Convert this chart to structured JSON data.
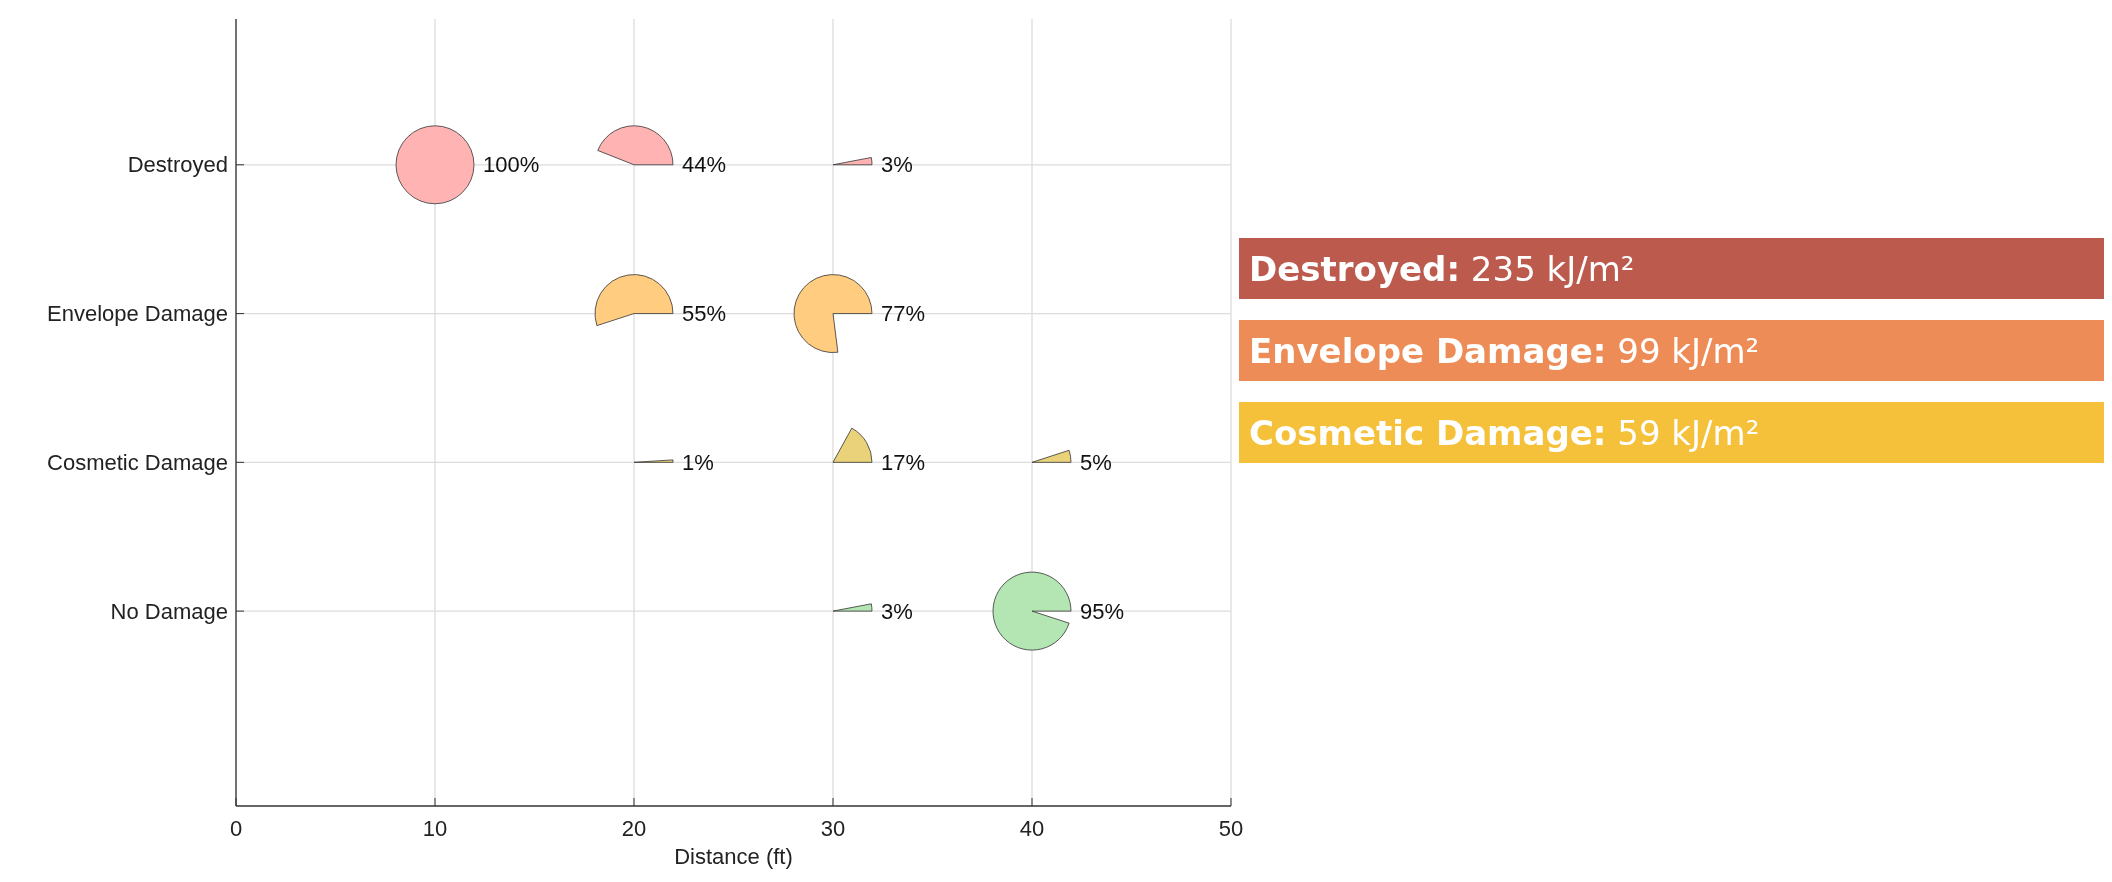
{
  "chart_data": [
    {
      "type": "heatmap",
      "xlabel": "Distance (ft)",
      "x": [
        10,
        20,
        30,
        40
      ],
      "xlim": [
        0,
        50
      ],
      "xticks": [
        0,
        10,
        20,
        30,
        40,
        50
      ],
      "y_categories": [
        "Destroyed",
        "Envelope Damage",
        "Cosmetic Damage",
        "No Damage"
      ],
      "cells": [
        [
          100,
          44,
          3,
          null
        ],
        [
          null,
          55,
          77,
          null
        ],
        [
          null,
          1,
          17,
          5
        ],
        [
          null,
          null,
          3,
          95
        ]
      ],
      "cell_labels": [
        [
          "100%",
          "44%",
          "3%",
          null
        ],
        [
          null,
          "55%",
          "77%",
          null
        ],
        [
          null,
          "1%",
          "17%",
          "5%"
        ],
        [
          null,
          null,
          "3%",
          "95%"
        ]
      ],
      "colors": [
        "#ffb3b3",
        "#ffcc80",
        "#ead27a",
        "#b3e6b3"
      ],
      "grid": true
    },
    {
      "type": "other",
      "annotations": [
        "Destroyed: 235 kJ/m²",
        "Envelope Damage: 99 kJ/m²",
        "Cosmetic Damage: 59 kJ/m²"
      ],
      "colors": [
        "#bc5a4e",
        "#ee8c57",
        "#f5c13a"
      ]
    }
  ]
}
